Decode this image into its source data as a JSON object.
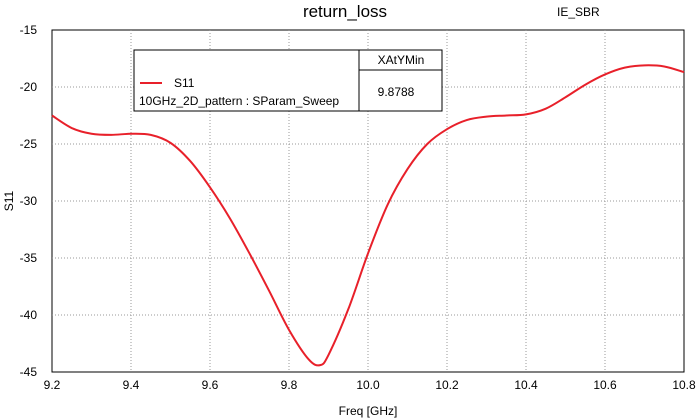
{
  "chart_data": {
    "type": "line",
    "title": "return_loss",
    "corner_label": "IE_SBR",
    "xlabel": "Freq [GHz]",
    "ylabel": "S11",
    "xlim": [
      9.2,
      10.8
    ],
    "ylim": [
      -45,
      -15
    ],
    "x_ticks": [
      9.2,
      9.4,
      9.6,
      9.8,
      10.0,
      10.2,
      10.4,
      10.6,
      10.8
    ],
    "x_tick_labels": [
      "9.2",
      "9.4",
      "9.6",
      "9.8",
      "10.0",
      "10.2",
      "10.4",
      "10.6",
      "10.8"
    ],
    "y_ticks": [
      -15,
      -20,
      -25,
      -30,
      -35,
      -40,
      -45
    ],
    "y_tick_labels": [
      "-15",
      "-20",
      "-25",
      "-30",
      "-35",
      "-40",
      "-45"
    ],
    "grid": true,
    "legend_position": "top-left",
    "legend": {
      "header": "XAtYMin",
      "entry_name": "S11",
      "source_label": "10GHz_2D_pattern : SParam_Sweep",
      "value": "9.8788"
    },
    "series": [
      {
        "name": "S11",
        "color": "#e8202a",
        "x": [
          9.2,
          9.25,
          9.3,
          9.35,
          9.4,
          9.45,
          9.5,
          9.55,
          9.6,
          9.65,
          9.7,
          9.75,
          9.8,
          9.85,
          9.8788,
          9.9,
          9.95,
          10.0,
          10.05,
          10.1,
          10.15,
          10.2,
          10.25,
          10.3,
          10.35,
          10.4,
          10.45,
          10.5,
          10.55,
          10.6,
          10.65,
          10.7,
          10.75,
          10.8
        ],
        "y": [
          -22.5,
          -23.6,
          -24.1,
          -24.2,
          -24.1,
          -24.2,
          -24.9,
          -26.5,
          -28.8,
          -31.5,
          -34.6,
          -37.9,
          -41.3,
          -43.9,
          -44.4,
          -43.5,
          -39.5,
          -34.6,
          -30.3,
          -27.2,
          -25.0,
          -23.7,
          -22.9,
          -22.6,
          -22.5,
          -22.4,
          -21.9,
          -20.9,
          -19.8,
          -18.9,
          -18.3,
          -18.1,
          -18.2,
          -18.7
        ]
      }
    ]
  }
}
